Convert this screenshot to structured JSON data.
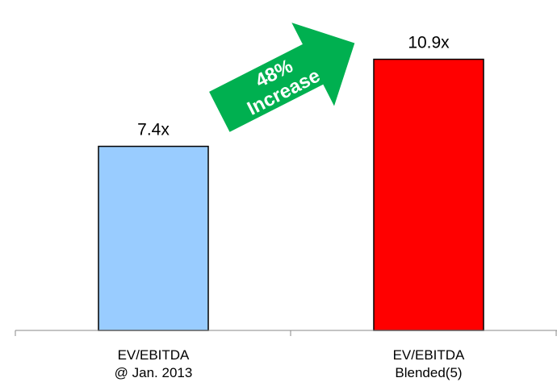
{
  "chart_data": {
    "type": "bar",
    "categories": [
      [
        "EV/EBITDA",
        "@ Jan. 2013"
      ],
      [
        "EV/EBITDA",
        "Blended(5)"
      ]
    ],
    "values": [
      7.4,
      10.9
    ],
    "data_labels": [
      "7.4x",
      "10.9x"
    ],
    "bar_colors": [
      "#99ccff",
      "#ff0000"
    ],
    "ylim": [
      0,
      12.7
    ],
    "grid": false,
    "annotation": {
      "lines": [
        "48%",
        "Increase"
      ],
      "color": "#00b050"
    }
  }
}
